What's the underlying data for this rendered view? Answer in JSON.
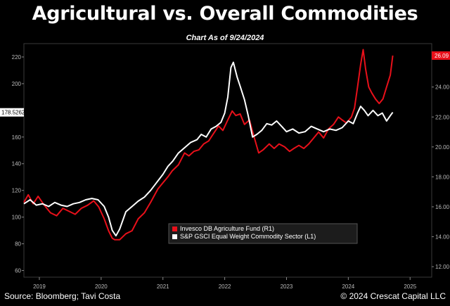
{
  "chart_data": {
    "type": "line",
    "title": "Agricultural vs. Overall Commodities",
    "subtitle": "Chart As of 9/24/2024",
    "x_ticks": [
      "2019",
      "2020",
      "2021",
      "2022",
      "2023",
      "2024",
      "2025"
    ],
    "left_axis": {
      "ticks": [
        "220",
        "200",
        "180",
        "160",
        "140",
        "120",
        "100",
        "80",
        "60"
      ],
      "ylim": [
        55,
        230
      ]
    },
    "right_axis": {
      "ticks": [
        "24.00",
        "22.00",
        "20.00",
        "18.00",
        "16.00",
        "14.00",
        "12.00"
      ],
      "ylim": [
        11.3,
        26.9
      ]
    },
    "last_value_left": "178.5262",
    "last_value_right": "26.09",
    "series": [
      {
        "name": "Invesco DB Agriculture Fund  (R1)",
        "axis": "right",
        "color": "#e8101a",
        "points": [
          [
            2018.75,
            16.3
          ],
          [
            2018.82,
            16.8
          ],
          [
            2018.9,
            16.2
          ],
          [
            2018.98,
            16.7
          ],
          [
            2019.08,
            16.1
          ],
          [
            2019.18,
            15.6
          ],
          [
            2019.28,
            15.4
          ],
          [
            2019.38,
            15.9
          ],
          [
            2019.48,
            15.7
          ],
          [
            2019.58,
            15.5
          ],
          [
            2019.68,
            15.9
          ],
          [
            2019.78,
            16.1
          ],
          [
            2019.88,
            16.4
          ],
          [
            2019.96,
            16.0
          ],
          [
            2020.05,
            15.2
          ],
          [
            2020.12,
            14.4
          ],
          [
            2020.18,
            13.9
          ],
          [
            2020.22,
            13.8
          ],
          [
            2020.3,
            13.8
          ],
          [
            2020.4,
            14.2
          ],
          [
            2020.5,
            14.4
          ],
          [
            2020.6,
            15.2
          ],
          [
            2020.7,
            15.6
          ],
          [
            2020.8,
            16.3
          ],
          [
            2020.92,
            17.2
          ],
          [
            2021.0,
            17.6
          ],
          [
            2021.08,
            18.0
          ],
          [
            2021.15,
            18.4
          ],
          [
            2021.25,
            18.8
          ],
          [
            2021.35,
            19.6
          ],
          [
            2021.42,
            19.4
          ],
          [
            2021.5,
            19.7
          ],
          [
            2021.58,
            19.8
          ],
          [
            2021.66,
            20.2
          ],
          [
            2021.74,
            20.4
          ],
          [
            2021.82,
            20.9
          ],
          [
            2021.9,
            21.4
          ],
          [
            2021.97,
            21.1
          ],
          [
            2022.05,
            21.8
          ],
          [
            2022.12,
            22.4
          ],
          [
            2022.18,
            22.1
          ],
          [
            2022.25,
            22.2
          ],
          [
            2022.32,
            21.5
          ],
          [
            2022.4,
            21.8
          ],
          [
            2022.48,
            20.6
          ],
          [
            2022.55,
            19.6
          ],
          [
            2022.62,
            19.8
          ],
          [
            2022.72,
            20.2
          ],
          [
            2022.8,
            19.9
          ],
          [
            2022.88,
            20.2
          ],
          [
            2022.97,
            20.0
          ],
          [
            2023.05,
            19.7
          ],
          [
            2023.12,
            19.9
          ],
          [
            2023.2,
            20.1
          ],
          [
            2023.28,
            19.9
          ],
          [
            2023.36,
            20.2
          ],
          [
            2023.44,
            20.6
          ],
          [
            2023.52,
            21.0
          ],
          [
            2023.6,
            20.6
          ],
          [
            2023.68,
            21.2
          ],
          [
            2023.76,
            21.5
          ],
          [
            2023.84,
            22.0
          ],
          [
            2023.9,
            21.8
          ],
          [
            2023.97,
            21.6
          ],
          [
            2024.05,
            22.0
          ],
          [
            2024.1,
            22.6
          ],
          [
            2024.15,
            24.0
          ],
          [
            2024.2,
            25.5
          ],
          [
            2024.24,
            26.5
          ],
          [
            2024.28,
            25.2
          ],
          [
            2024.33,
            24.0
          ],
          [
            2024.38,
            23.6
          ],
          [
            2024.44,
            23.2
          ],
          [
            2024.5,
            22.9
          ],
          [
            2024.56,
            23.2
          ],
          [
            2024.62,
            24.0
          ],
          [
            2024.68,
            24.8
          ],
          [
            2024.72,
            26.1
          ]
        ]
      },
      {
        "name": "S&P GSCI Equal Weight Commodity Sector  (L1)",
        "axis": "left",
        "color": "#ffffff",
        "points": [
          [
            2018.75,
            110
          ],
          [
            2018.85,
            113
          ],
          [
            2018.95,
            109
          ],
          [
            2019.05,
            110
          ],
          [
            2019.15,
            108
          ],
          [
            2019.25,
            111
          ],
          [
            2019.35,
            109
          ],
          [
            2019.45,
            108
          ],
          [
            2019.55,
            110
          ],
          [
            2019.65,
            111
          ],
          [
            2019.75,
            113
          ],
          [
            2019.85,
            114
          ],
          [
            2019.95,
            113
          ],
          [
            2020.05,
            108
          ],
          [
            2020.12,
            100
          ],
          [
            2020.18,
            90
          ],
          [
            2020.24,
            86
          ],
          [
            2020.3,
            91
          ],
          [
            2020.4,
            104
          ],
          [
            2020.5,
            108
          ],
          [
            2020.6,
            112
          ],
          [
            2020.7,
            115
          ],
          [
            2020.8,
            120
          ],
          [
            2020.9,
            126
          ],
          [
            2021.0,
            132
          ],
          [
            2021.08,
            138
          ],
          [
            2021.16,
            142
          ],
          [
            2021.25,
            148
          ],
          [
            2021.35,
            152
          ],
          [
            2021.45,
            156
          ],
          [
            2021.55,
            158
          ],
          [
            2021.62,
            162
          ],
          [
            2021.7,
            160
          ],
          [
            2021.78,
            166
          ],
          [
            2021.86,
            168
          ],
          [
            2021.94,
            171
          ],
          [
            2022.0,
            178
          ],
          [
            2022.05,
            190
          ],
          [
            2022.1,
            212
          ],
          [
            2022.14,
            216
          ],
          [
            2022.2,
            205
          ],
          [
            2022.25,
            198
          ],
          [
            2022.32,
            188
          ],
          [
            2022.38,
            176
          ],
          [
            2022.45,
            160
          ],
          [
            2022.52,
            162
          ],
          [
            2022.6,
            165
          ],
          [
            2022.68,
            170
          ],
          [
            2022.76,
            169
          ],
          [
            2022.84,
            172
          ],
          [
            2022.92,
            168
          ],
          [
            2023.0,
            164
          ],
          [
            2023.1,
            166
          ],
          [
            2023.2,
            163
          ],
          [
            2023.3,
            164
          ],
          [
            2023.4,
            168
          ],
          [
            2023.5,
            166
          ],
          [
            2023.6,
            164
          ],
          [
            2023.7,
            166
          ],
          [
            2023.8,
            165
          ],
          [
            2023.9,
            167
          ],
          [
            2024.0,
            172
          ],
          [
            2024.08,
            170
          ],
          [
            2024.15,
            178
          ],
          [
            2024.2,
            183
          ],
          [
            2024.26,
            180
          ],
          [
            2024.32,
            176
          ],
          [
            2024.4,
            180
          ],
          [
            2024.48,
            176
          ],
          [
            2024.55,
            178
          ],
          [
            2024.62,
            172
          ],
          [
            2024.68,
            176
          ],
          [
            2024.72,
            178.5
          ]
        ]
      }
    ]
  },
  "footer": {
    "source": "Source: Bloomberg; Tavi Costa",
    "copyright": "© 2024 Crescat Capital LLC"
  }
}
